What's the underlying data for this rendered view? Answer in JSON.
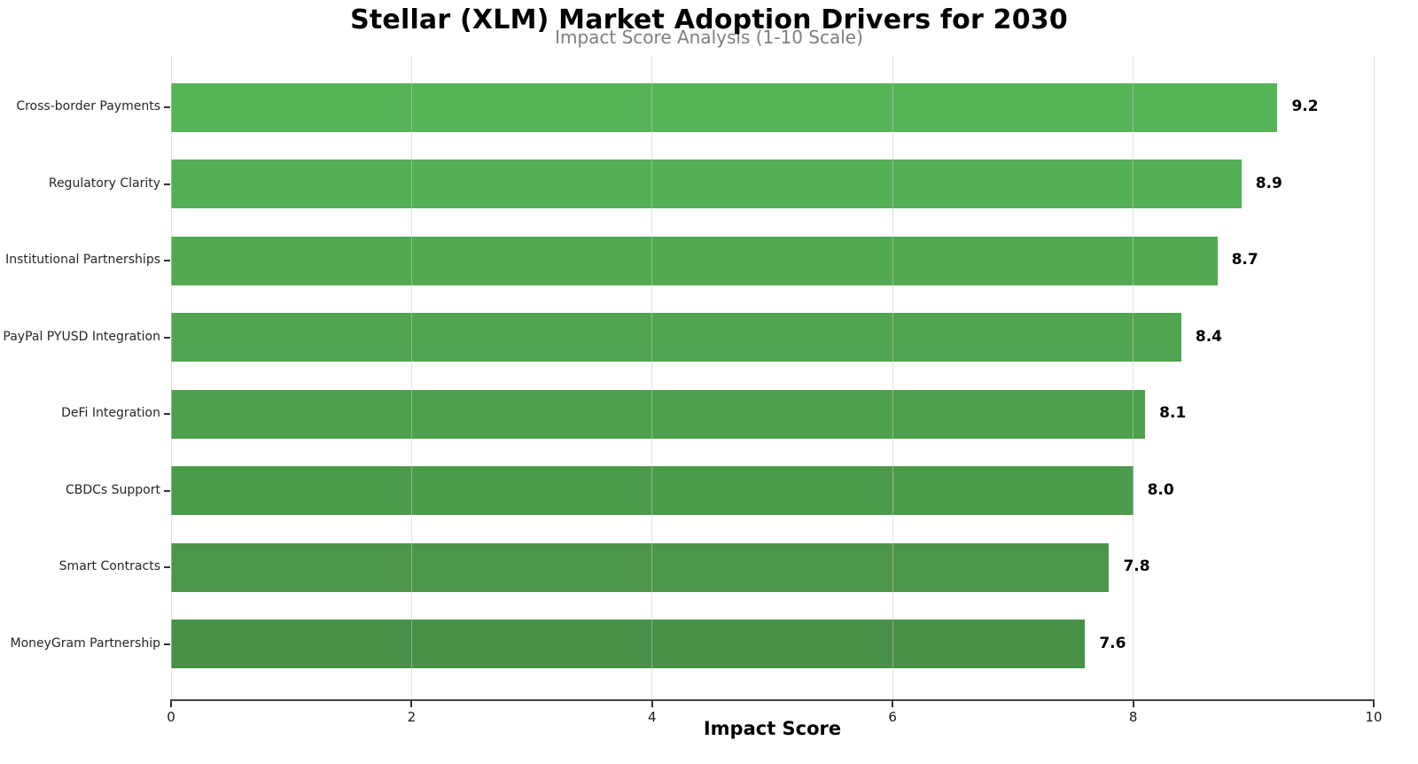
{
  "chart_data": {
    "type": "bar",
    "orientation": "horizontal",
    "title": "Stellar (XLM) Market Adoption Drivers for 2030",
    "subtitle": "Impact Score Analysis (1-10 Scale)",
    "xlabel": "Impact Score",
    "xlim": [
      0,
      10
    ],
    "x_tick_values": [
      0,
      2,
      4,
      6,
      8,
      10
    ],
    "x_tick_labels": [
      "0",
      "2",
      "4",
      "6",
      "8",
      "10"
    ],
    "categories": [
      "Cross-border Payments",
      "Regulatory Clarity",
      "Institutional Partnerships",
      "PayPal PYUSD Integration",
      "DeFi Integration",
      "CBDCs Support",
      "Smart Contracts",
      "MoneyGram Partnership"
    ],
    "values": [
      9.2,
      8.9,
      8.7,
      8.4,
      8.1,
      8.0,
      7.8,
      7.6
    ],
    "value_labels": [
      "9.2",
      "8.9",
      "8.7",
      "8.4",
      "8.1",
      "8.0",
      "7.8",
      "7.6"
    ],
    "bar_colors": [
      "#55b455",
      "#53af53",
      "#51aa51",
      "#50a550",
      "#4ea04e",
      "#4c9b4c",
      "#4b964b",
      "#499149"
    ],
    "legend_position": "none",
    "grid": "vertical gridlines at x ticks, light gray, drawn over bars"
  },
  "style": {
    "background": "#ffffff",
    "title_color": "#000000",
    "subtitle_color": "#7f7f7f",
    "axis_color": "#424242",
    "tick_label_color": "#1a1a1a",
    "category_label_color": "#262626",
    "value_label_color": "#000000",
    "gridline_color": "rgba(200,200,200,0.55)"
  }
}
